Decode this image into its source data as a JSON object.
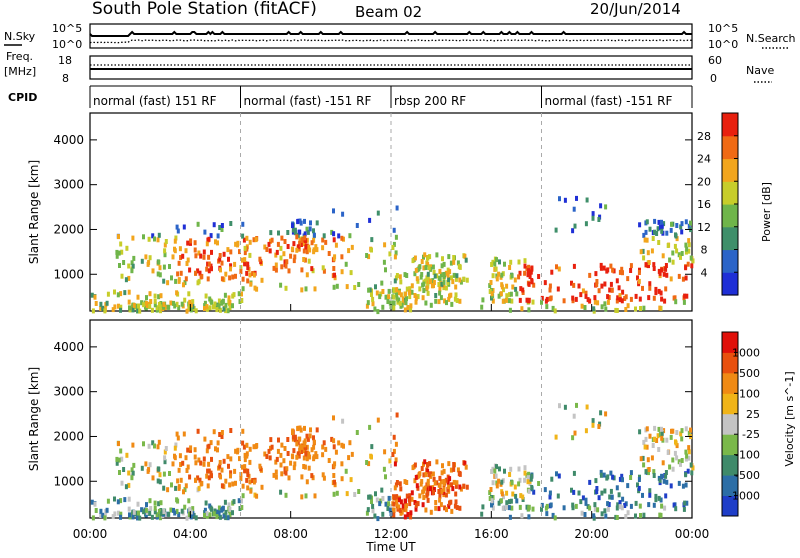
{
  "header": {
    "station": "South Pole Station (fitACF)",
    "beam": "Beam 02",
    "date": "20/Jun/2014"
  },
  "top_panel": {
    "left_label": "N.Sky",
    "left_tick_top": "10^5",
    "left_tick_bottom": "10^0",
    "right_label": "N.Search",
    "right_tick_top": "10^5",
    "right_tick_bottom": "10^0",
    "freq_label_1": "Freq.",
    "freq_label_2": "[MHz]",
    "freq_tick_top": "18",
    "freq_tick_bottom": "8",
    "nave_label": "Nave",
    "nave_tick_top": "60",
    "nave_tick_bottom": "0",
    "cpid_label": "CPID",
    "cpid_segments": [
      {
        "label": "normal (fast) 151 RF",
        "start_hour": 0,
        "end_hour": 6
      },
      {
        "label": "normal (fast) -151 RF",
        "start_hour": 6,
        "end_hour": 12
      },
      {
        "label": "rbsp 200 RF",
        "start_hour": 12,
        "end_hour": 18
      },
      {
        "label": "normal (fast) -151 RF",
        "start_hour": 18,
        "end_hour": 24
      }
    ]
  },
  "chart_data": [
    {
      "type": "heatmap",
      "name": "power",
      "ylabel": "Slant Range [km]",
      "xlim": [
        0,
        24
      ],
      "ylim": [
        180,
        4600
      ],
      "yticks": [
        "1000",
        "2000",
        "3000",
        "4000"
      ],
      "ytick_values": [
        1000,
        2000,
        3000,
        4000
      ],
      "colorbar_label": "Power [dB]",
      "colorbar_ticks": [
        "4",
        "8",
        "12",
        "16",
        "20",
        "24",
        "28"
      ],
      "colorbar_range": [
        0,
        32
      ],
      "colorbar_colors": [
        "#1f2fd6",
        "#2b64c8",
        "#3f8f6a",
        "#6fb54a",
        "#c7cd2a",
        "#f2a51c",
        "#f06a14",
        "#e8200e"
      ]
    },
    {
      "type": "heatmap",
      "name": "velocity",
      "ylabel": "Slant Range [km]",
      "xlabel": "Time UT",
      "xlim": [
        0,
        24
      ],
      "ylim": [
        180,
        4600
      ],
      "xticks": [
        "00:00",
        "04:00",
        "08:00",
        "12:00",
        "16:00",
        "20:00",
        "00:00"
      ],
      "yticks": [
        "1000",
        "2000",
        "3000",
        "4000"
      ],
      "ytick_values": [
        1000,
        2000,
        3000,
        4000
      ],
      "colorbar_label": "Velocity [m s^-1]",
      "colorbar_ticks": [
        "1000",
        "500",
        "100",
        "25",
        "-25",
        "-100",
        "-500",
        "-1000"
      ],
      "colorbar_colors": [
        "#1f3ec8",
        "#2c6ea6",
        "#3f8a6a",
        "#7ab84a",
        "#c4c4c4",
        "#f0b418",
        "#f08a14",
        "#e8500e",
        "#e0100a"
      ]
    }
  ]
}
